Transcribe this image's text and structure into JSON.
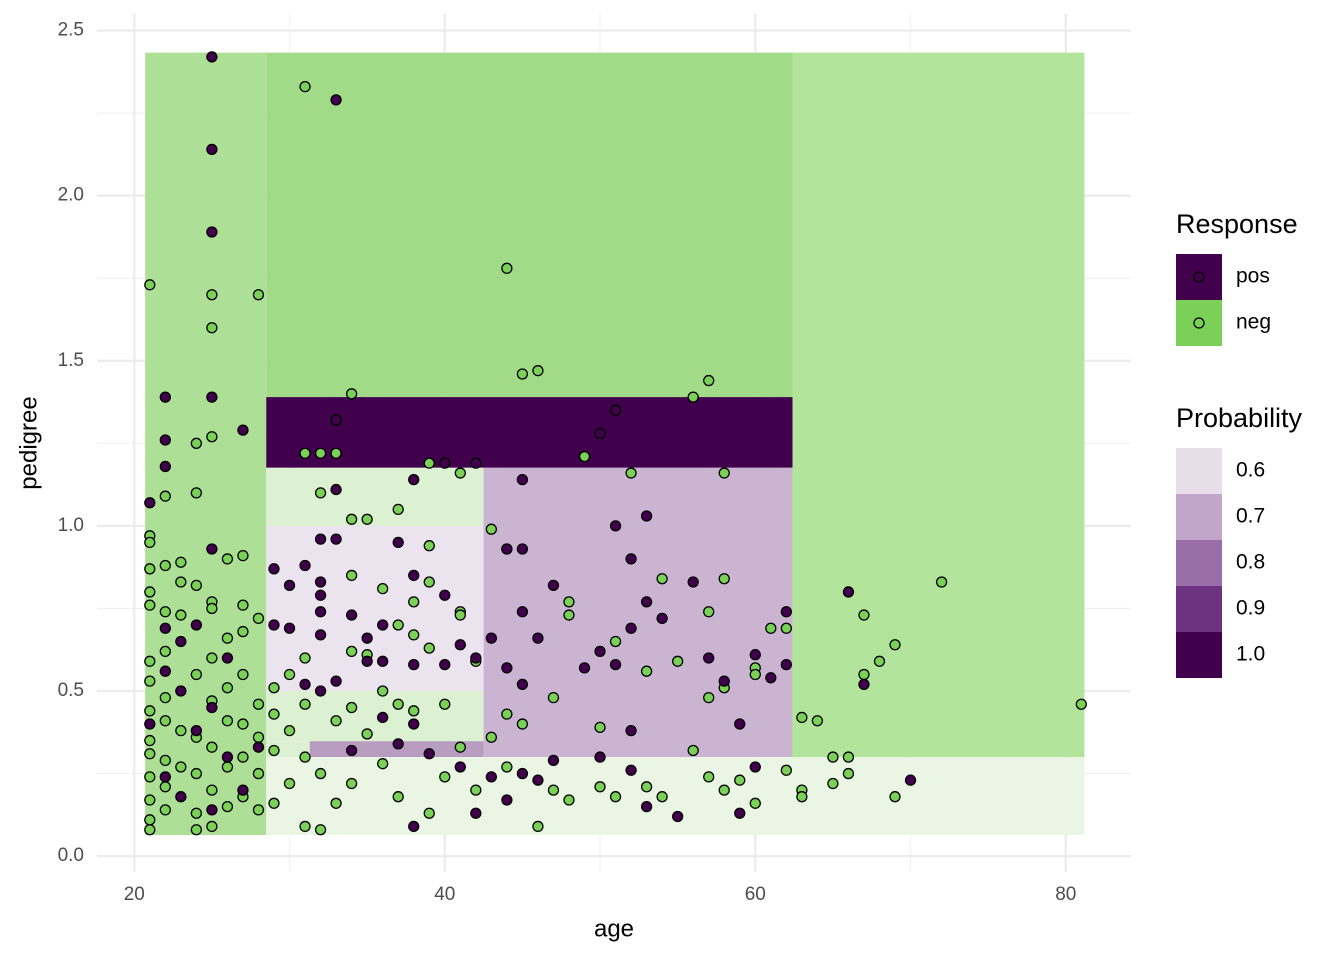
{
  "chart_data": {
    "type": "partition-scatter",
    "x_label": "age",
    "y_label": "pedigree",
    "xlim": [
      17.6,
      84.2
    ],
    "ylim": [
      -0.048,
      2.55
    ],
    "xticks": [
      20,
      40,
      60,
      80
    ],
    "yticks": [
      {
        "value": 0,
        "label": "0.0"
      },
      0.5,
      {
        "value": 1,
        "label": "1.0"
      },
      1.5,
      {
        "value": 2,
        "label": "2.0"
      },
      2.5
    ],
    "grid": true,
    "regions": [
      {
        "xmin": 20.7,
        "xmax": 28.5,
        "ymin": 0.064,
        "ymax": 2.433,
        "fill": "#addf96"
      },
      {
        "xmin": 28.5,
        "xmax": 62.4,
        "ymin": 1.39,
        "ymax": 2.433,
        "fill": "#a2db88"
      },
      {
        "xmin": 28.5,
        "xmax": 62.4,
        "ymin": 1.176,
        "ymax": 1.39,
        "fill": "#40004b"
      },
      {
        "xmin": 28.5,
        "xmax": 42.5,
        "ymin": 1.0,
        "ymax": 1.176,
        "fill": "#dcf1d2"
      },
      {
        "xmin": 28.5,
        "xmax": 42.5,
        "ymin": 0.5,
        "ymax": 1.0,
        "fill": "#ebe3ee"
      },
      {
        "xmin": 28.5,
        "xmax": 42.5,
        "ymin": 0.348,
        "ymax": 0.5,
        "fill": "#dcf1d2"
      },
      {
        "xmin": 28.5,
        "xmax": 31.3,
        "ymin": 0.3,
        "ymax": 0.348,
        "fill": "#dcf1d2"
      },
      {
        "xmin": 31.3,
        "xmax": 42.5,
        "ymin": 0.3,
        "ymax": 0.348,
        "fill": "#b89dc1"
      },
      {
        "xmin": 42.5,
        "xmax": 62.4,
        "ymin": 0.3,
        "ymax": 1.176,
        "fill": "#cab4d1"
      },
      {
        "xmin": 28.5,
        "xmax": 81.2,
        "ymin": 0.064,
        "ymax": 0.3,
        "fill": "#eaf5e4"
      },
      {
        "xmin": 62.4,
        "xmax": 81.2,
        "ymin": 0.3,
        "ymax": 2.433,
        "fill": "#b2e49b"
      }
    ],
    "legend_title": "Response",
    "series": [
      {
        "name": "pos",
        "color": "#40004b",
        "x": [
          25,
          33,
          25,
          25,
          25,
          22,
          22,
          27,
          22,
          21,
          25,
          33,
          33,
          38,
          40,
          42,
          45,
          51,
          50,
          51,
          53,
          52,
          45,
          44,
          37,
          38,
          40,
          47,
          56,
          53,
          54,
          52,
          45,
          46,
          43,
          41,
          42,
          44,
          45,
          49,
          50,
          51,
          57,
          58,
          59,
          60,
          61,
          62,
          62,
          66,
          67,
          70,
          59,
          55,
          53,
          52,
          50,
          52,
          60,
          32,
          33,
          31,
          32,
          30,
          29,
          32,
          32,
          34,
          30,
          32,
          29,
          35,
          36,
          35,
          36,
          38,
          40,
          33,
          31,
          32,
          36,
          38,
          39,
          41,
          43,
          45,
          47,
          37,
          34,
          38,
          42,
          44,
          46,
          22,
          23,
          24,
          22,
          23,
          25,
          24,
          26,
          22,
          23,
          25,
          27,
          28,
          21,
          26
        ],
        "y": [
          2.42,
          2.29,
          2.14,
          1.89,
          1.39,
          1.39,
          1.26,
          1.29,
          1.18,
          1.07,
          0.93,
          1.32,
          1.11,
          1.14,
          1.19,
          1.19,
          1.14,
          1.35,
          1.28,
          1.0,
          1.03,
          0.9,
          0.93,
          0.93,
          0.95,
          0.85,
          0.79,
          0.82,
          0.83,
          0.77,
          0.72,
          0.69,
          0.74,
          0.66,
          0.66,
          0.64,
          0.6,
          0.57,
          0.52,
          0.57,
          0.62,
          0.58,
          0.6,
          0.53,
          0.4,
          0.61,
          0.54,
          0.58,
          0.74,
          0.8,
          0.52,
          0.23,
          0.13,
          0.12,
          0.15,
          0.26,
          0.3,
          0.38,
          0.27,
          0.96,
          0.96,
          0.88,
          0.83,
          0.82,
          0.87,
          0.79,
          0.74,
          0.73,
          0.69,
          0.67,
          0.7,
          0.66,
          0.7,
          0.59,
          0.59,
          0.58,
          0.58,
          0.53,
          0.52,
          0.5,
          0.42,
          0.4,
          0.31,
          0.27,
          0.24,
          0.25,
          0.29,
          0.34,
          0.32,
          0.09,
          0.13,
          0.17,
          0.23,
          0.69,
          0.65,
          0.7,
          0.56,
          0.5,
          0.45,
          0.38,
          0.3,
          0.24,
          0.18,
          0.14,
          0.2,
          0.33,
          0.4,
          0.6
        ]
      },
      {
        "name": "neg",
        "color": "#7bd058",
        "x": [
          21,
          25,
          28,
          25,
          31,
          44,
          45,
          46,
          34,
          56,
          57,
          25,
          24,
          31,
          32,
          33,
          24,
          22,
          32,
          34,
          35,
          37,
          39,
          41,
          49,
          52,
          58,
          43,
          44,
          39,
          34,
          36,
          38,
          39,
          41,
          41,
          37,
          38,
          35,
          34,
          39,
          42,
          48,
          48,
          54,
          58,
          57,
          51,
          53,
          55,
          57,
          58,
          60,
          60,
          61,
          62,
          67,
          72,
          69,
          68,
          67,
          81,
          63,
          64,
          65,
          66,
          65,
          66,
          69,
          63,
          63,
          62,
          60,
          59,
          58,
          57,
          56,
          54,
          53,
          51,
          50,
          50,
          48,
          47,
          46,
          45,
          47,
          44,
          43,
          41,
          40,
          38,
          37,
          36,
          34,
          35,
          33,
          31,
          30,
          29,
          31,
          30,
          31,
          32,
          33,
          31,
          32,
          34,
          36,
          37,
          39,
          40,
          42,
          44,
          21,
          21,
          21,
          22,
          23,
          23,
          24,
          21,
          21,
          22,
          23,
          25,
          25,
          26,
          27,
          27,
          28,
          27,
          26,
          22,
          21,
          21,
          22,
          21,
          22,
          23,
          21,
          21,
          22,
          23,
          21,
          22,
          21,
          22,
          21,
          21,
          24,
          25,
          24,
          26,
          25,
          24,
          26,
          25,
          24,
          26,
          25,
          26,
          24,
          25,
          27,
          28,
          27,
          28,
          27,
          28,
          27,
          28,
          29,
          30,
          29,
          29
        ],
        "y": [
          1.73,
          1.7,
          1.7,
          1.6,
          2.33,
          1.78,
          1.46,
          1.47,
          1.4,
          1.39,
          1.44,
          1.27,
          1.25,
          1.22,
          1.22,
          1.22,
          1.1,
          1.09,
          1.1,
          1.02,
          1.02,
          1.05,
          1.19,
          1.16,
          1.21,
          1.16,
          1.16,
          0.99,
          0.93,
          0.94,
          0.85,
          0.81,
          0.77,
          0.83,
          0.74,
          0.73,
          0.7,
          0.67,
          0.61,
          0.62,
          0.63,
          0.59,
          0.73,
          0.77,
          0.84,
          0.84,
          0.74,
          0.65,
          0.56,
          0.59,
          0.48,
          0.51,
          0.57,
          0.55,
          0.69,
          0.69,
          0.73,
          0.83,
          0.64,
          0.59,
          0.55,
          0.46,
          0.42,
          0.41,
          0.3,
          0.3,
          0.22,
          0.25,
          0.18,
          0.2,
          0.18,
          0.26,
          0.16,
          0.23,
          0.2,
          0.24,
          0.32,
          0.18,
          0.21,
          0.18,
          0.39,
          0.21,
          0.17,
          0.2,
          0.09,
          0.4,
          0.48,
          0.43,
          0.36,
          0.33,
          0.46,
          0.44,
          0.46,
          0.5,
          0.45,
          0.37,
          0.41,
          0.46,
          0.55,
          0.51,
          0.6,
          0.38,
          0.3,
          0.25,
          0.16,
          0.09,
          0.08,
          0.22,
          0.28,
          0.18,
          0.13,
          0.24,
          0.2,
          0.27,
          0.97,
          0.95,
          0.87,
          0.88,
          0.89,
          0.83,
          0.82,
          0.8,
          0.76,
          0.74,
          0.73,
          0.77,
          0.75,
          0.9,
          0.91,
          0.76,
          0.72,
          0.68,
          0.66,
          0.62,
          0.59,
          0.53,
          0.48,
          0.44,
          0.41,
          0.38,
          0.35,
          0.31,
          0.29,
          0.27,
          0.24,
          0.21,
          0.17,
          0.14,
          0.11,
          0.08,
          0.08,
          0.09,
          0.13,
          0.15,
          0.2,
          0.25,
          0.27,
          0.33,
          0.36,
          0.41,
          0.47,
          0.51,
          0.55,
          0.6,
          0.55,
          0.46,
          0.4,
          0.36,
          0.3,
          0.25,
          0.18,
          0.14,
          0.16,
          0.22,
          0.32,
          0.43
        ]
      }
    ],
    "probability_legend": {
      "title": "Probability",
      "labels": [
        0.6,
        0.7,
        0.8,
        0.9,
        {
          "value": 1,
          "label": "1.0"
        }
      ],
      "colors": [
        "#e7deea",
        "#c1a6c9",
        "#9a6ea6",
        "#6e3380",
        "#40004b"
      ]
    }
  }
}
